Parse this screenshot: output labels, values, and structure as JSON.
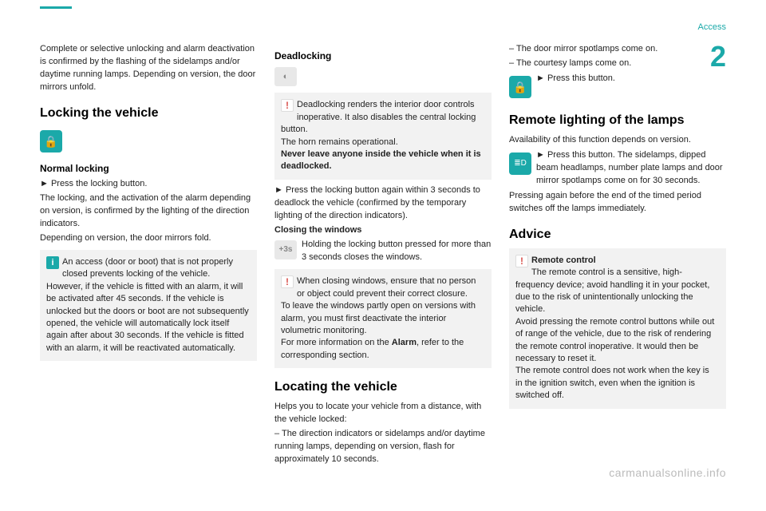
{
  "header": {
    "section": "Access",
    "chapter": "2"
  },
  "col1": {
    "intro": "Complete or selective unlocking and alarm deactivation is confirmed by the flashing of the sidelamps and/or daytime running lamps. Depending on version, the door mirrors unfold.",
    "h_locking": "Locking the vehicle",
    "h_normal": "Normal locking",
    "p_press": "►  Press the locking button.",
    "p_locking_desc": "The locking, and the activation of the alarm depending on version, is confirmed by the lighting of the direction indicators.",
    "p_mirrors": "Depending on version, the door mirrors fold.",
    "note1": "An access (door or boot) that is not properly closed prevents locking of the vehicle. However, if the vehicle is fitted with an alarm, it will be activated after 45 seconds. If the vehicle is unlocked but the doors or boot are not subsequently opened, the vehicle will automatically lock itself again after about 30 seconds. If the vehicle is fitted with an alarm, it will be reactivated automatically."
  },
  "col2": {
    "h_deadlocking": "Deadlocking",
    "warn_dead": "Deadlocking renders the interior door controls inoperative. It also disables the central locking button.",
    "warn_dead2": "The horn remains operational.",
    "warn_dead3": "Never leave anyone inside the vehicle when it is deadlocked.",
    "p_press_again": "►  Press the locking button again within 3 seconds to deadlock the vehicle (confirmed by the temporary lighting of the direction indicators).",
    "h_closing": "Closing the windows",
    "p_hold": "Holding the locking button pressed for more than 3 seconds closes the windows.",
    "warn_windows": "When closing windows, ensure that no person or object could prevent their correct closure.",
    "warn_windows2": "To leave the windows partly open on versions with alarm, you must first deactivate the interior volumetric monitoring.",
    "warn_windows3a": "For more information on the ",
    "warn_windows3b": "Alarm",
    "warn_windows3c": ", refer to the corresponding section.",
    "h_locating": "Locating the vehicle",
    "p_locate1": "Helps you to locate your vehicle from a distance, with the vehicle locked:",
    "p_locate2": "–  The direction indicators or sidelamps and/or daytime running lamps, depending on version, flash for approximately 10 seconds."
  },
  "col3": {
    "p_mirrors": "–  The door mirror spotlamps come on.",
    "p_courtesy": "–  The courtesy lamps come on.",
    "p_press_btn": "►  Press this button.",
    "h_remote": "Remote lighting of the lamps",
    "p_avail": "Availability of this function depends on version.",
    "p_press_lamps": "►  Press this button. The sidelamps, dipped beam headlamps, number plate lamps and door mirror spotlamps come on for 30 seconds.",
    "p_press_again": "Pressing again before the end of the timed period switches off the lamps immediately.",
    "h_advice": "Advice",
    "warn_remote_title": "Remote control",
    "warn_remote1": "The remote control is a sensitive, high-frequency device; avoid handling it in your pocket, due to the risk of unintentionally unlocking the vehicle.",
    "warn_remote2": "Avoid pressing the remote control buttons while out of range of the vehicle, due to the risk of rendering the remote control inoperative. It would then be necessary to reset it.",
    "warn_remote3": "The remote control does not work when the key is in the ignition switch, even when the ignition is switched off."
  },
  "icons": {
    "lock": "🔒",
    "3s": "+3s",
    "wheel": "◐",
    "lamp": "≣D"
  },
  "watermark": "carmanualsonline.info"
}
